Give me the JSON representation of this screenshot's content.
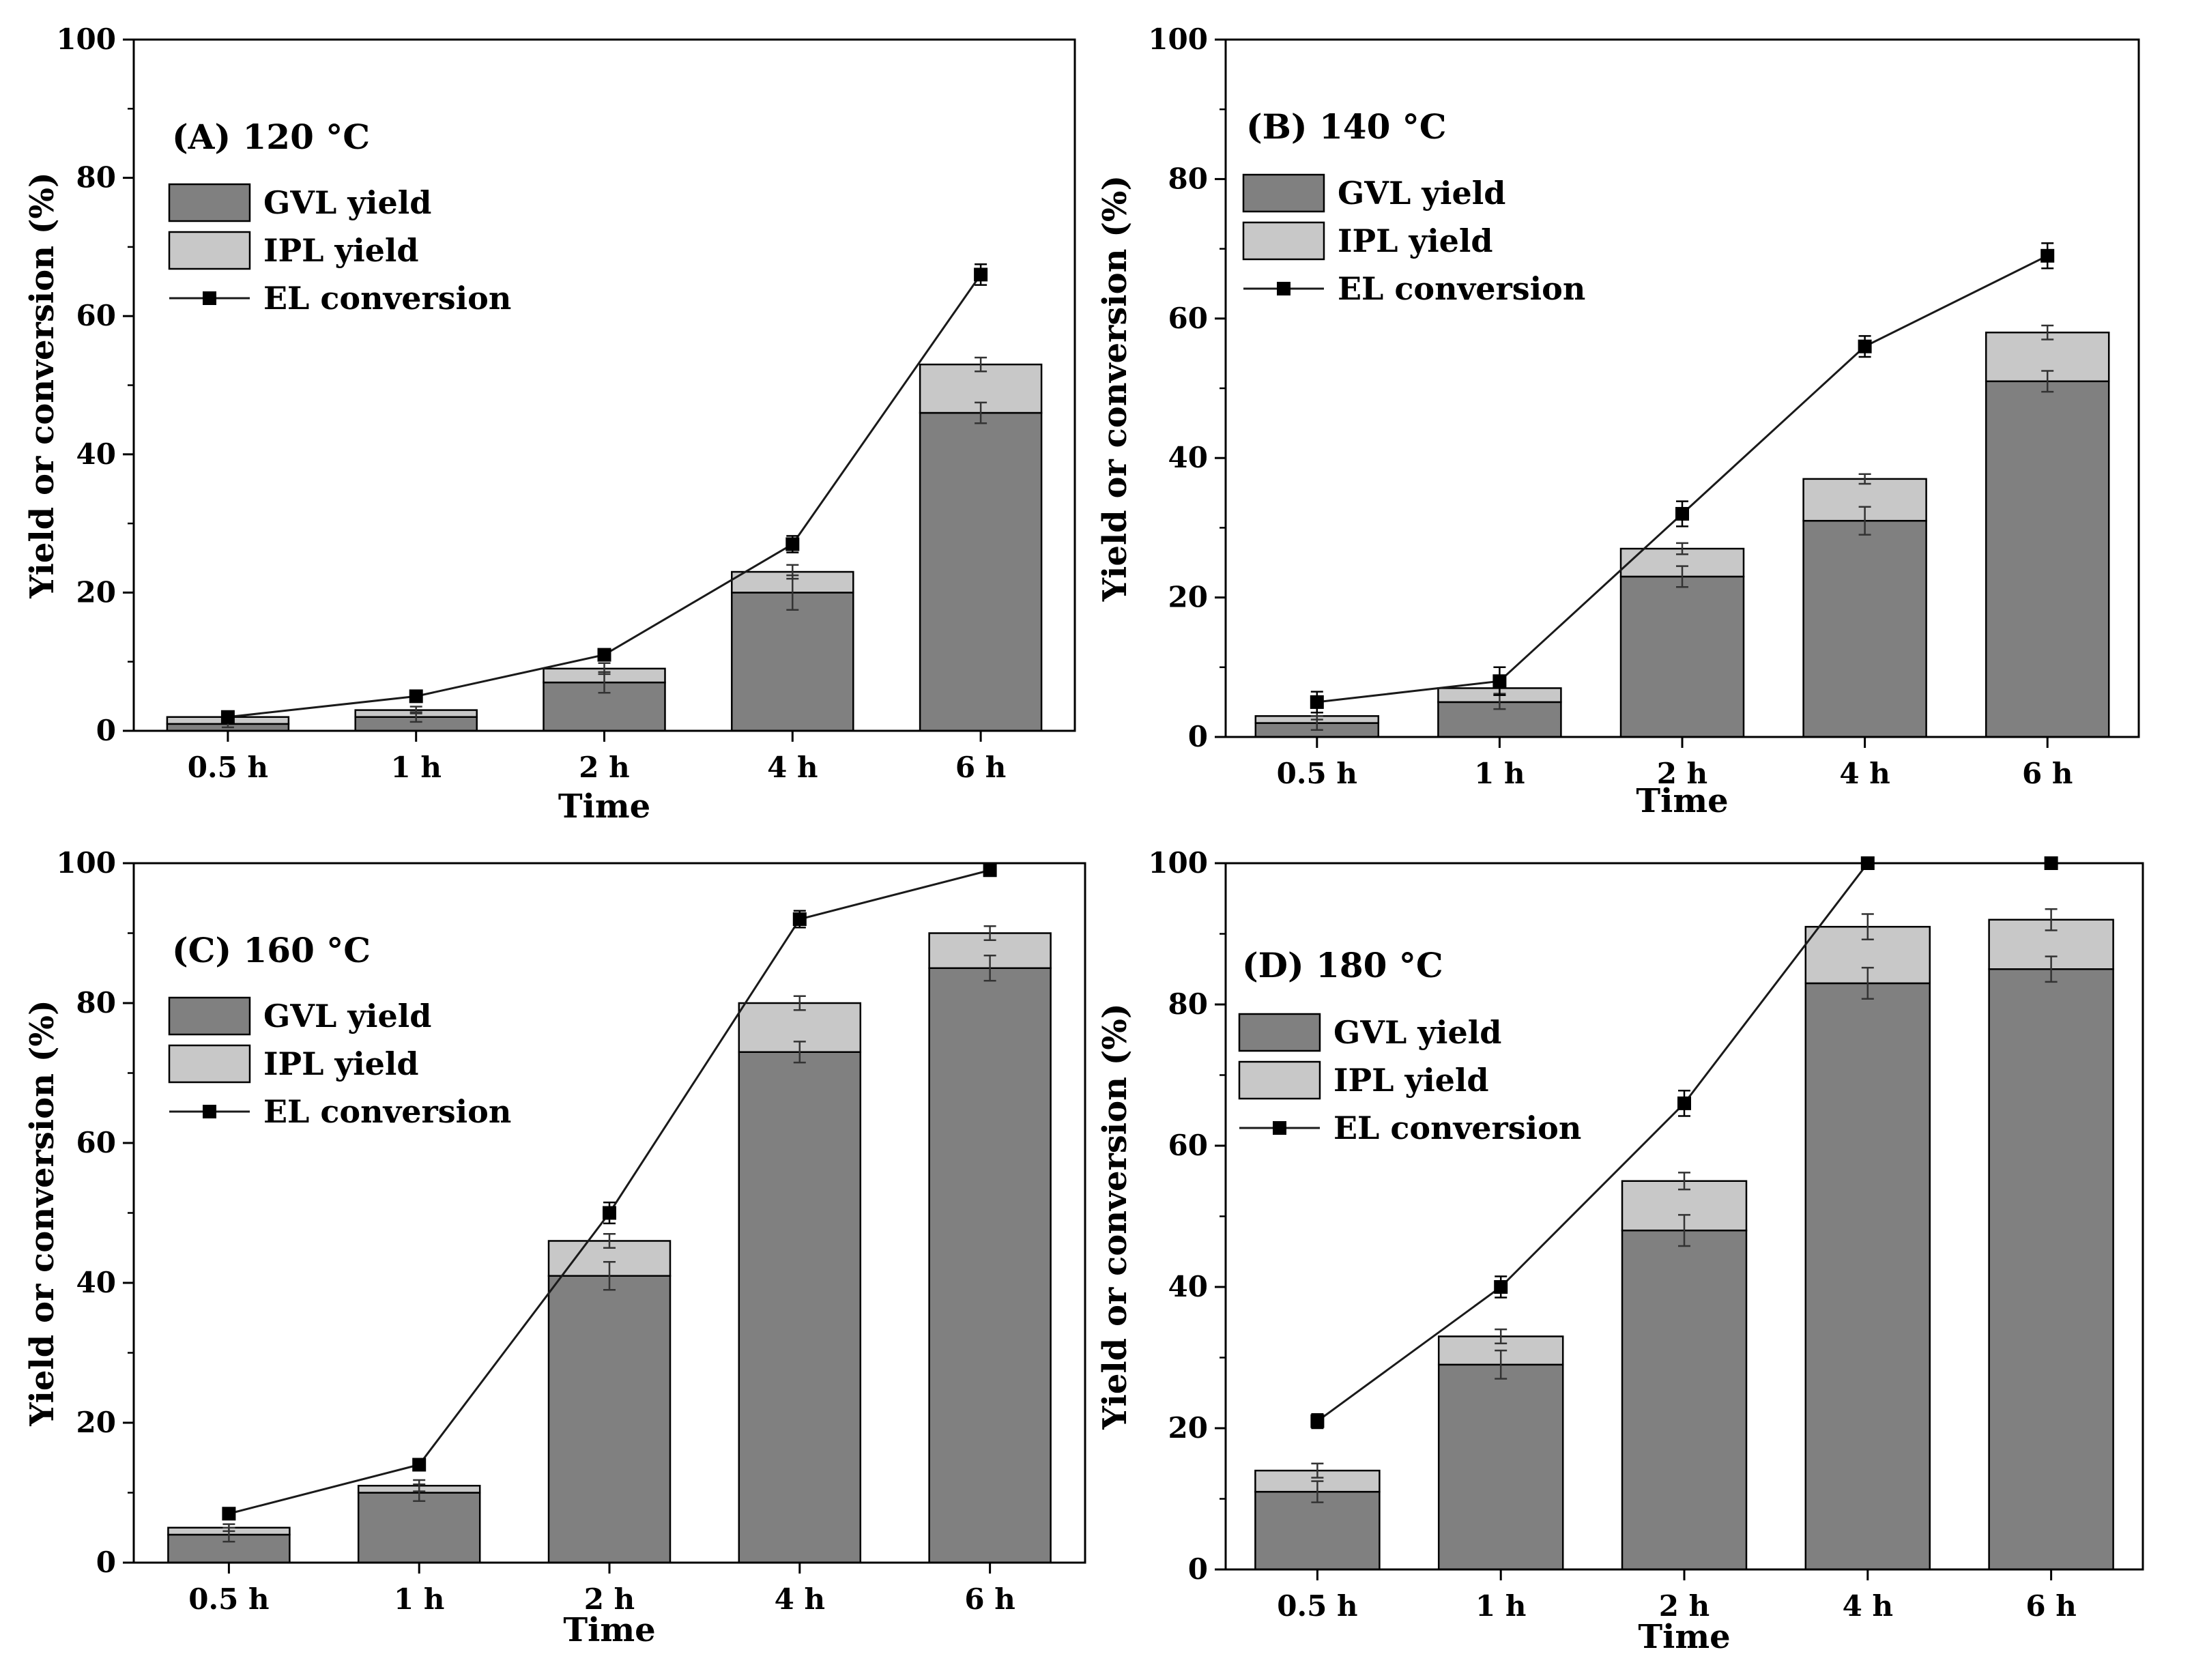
{
  "colors": {
    "gvl": "#808080",
    "ipl": "#c8c8c8",
    "line": "#1a1a1a",
    "marker": "#000000",
    "axis": "#000000"
  },
  "chart_data": [
    {
      "type": "bar",
      "panel": "A",
      "title": "(A)  120 °C",
      "categories": [
        "0.5 h",
        "1 h",
        "2 h",
        "4 h",
        "6 h"
      ],
      "xlabel": "Time",
      "ylabel": "Yield or conversion (%)",
      "ylim": [
        0,
        100
      ],
      "yticks": [
        "0",
        "20",
        "40",
        "60",
        "80",
        "100"
      ],
      "stacked": true,
      "series": [
        {
          "name": "GVL yield",
          "kind": "bar",
          "values": [
            1,
            2,
            7,
            20,
            46
          ],
          "errors": [
            0.5,
            0.7,
            1.5,
            2.5,
            1.5
          ]
        },
        {
          "name": "IPL yield",
          "kind": "bar",
          "values": [
            1,
            1,
            2,
            3,
            7
          ],
          "errors": [
            0.5,
            0.5,
            0.8,
            1.0,
            1.0
          ]
        },
        {
          "name": "EL conversion",
          "kind": "line",
          "values": [
            2,
            5,
            11,
            27,
            66
          ],
          "errors": [
            0.5,
            0.6,
            0.8,
            1.2,
            1.5
          ]
        }
      ]
    },
    {
      "type": "bar",
      "panel": "B",
      "title": "(B)   140 °C",
      "categories": [
        "0.5 h",
        "1 h",
        "2 h",
        "4 h",
        "6 h"
      ],
      "xlabel": "Time",
      "ylabel": "Yield or conversion (%)",
      "ylim": [
        0,
        100
      ],
      "yticks": [
        "0",
        "20",
        "40",
        "60",
        "80",
        "100"
      ],
      "stacked": true,
      "series": [
        {
          "name": "GVL yield",
          "kind": "bar",
          "values": [
            2,
            5,
            23,
            31,
            51
          ],
          "errors": [
            1.0,
            1.0,
            1.5,
            2.0,
            1.5
          ]
        },
        {
          "name": "IPL yield",
          "kind": "bar",
          "values": [
            1,
            2,
            4,
            6,
            7
          ],
          "errors": [
            0.5,
            0.8,
            0.8,
            0.7,
            1.0
          ]
        },
        {
          "name": "EL conversion",
          "kind": "line",
          "values": [
            5,
            8,
            32,
            56,
            69
          ],
          "errors": [
            1.5,
            2.0,
            1.8,
            1.5,
            1.8
          ]
        }
      ]
    },
    {
      "type": "bar",
      "panel": "C",
      "title": "(C)   160 °C",
      "categories": [
        "0.5 h",
        "1 h",
        "2 h",
        "4 h",
        "6 h"
      ],
      "xlabel": "Time",
      "ylabel": "Yield or conversion (%)",
      "ylim": [
        0,
        100
      ],
      "yticks": [
        "0",
        "20",
        "40",
        "60",
        "80",
        "100"
      ],
      "stacked": true,
      "series": [
        {
          "name": "GVL yield",
          "kind": "bar",
          "values": [
            4,
            10,
            41,
            73,
            85
          ],
          "errors": [
            1.0,
            1.2,
            2.0,
            1.5,
            1.8
          ]
        },
        {
          "name": "IPL yield",
          "kind": "bar",
          "values": [
            1,
            1,
            5,
            7,
            5
          ],
          "errors": [
            0.5,
            0.8,
            1.0,
            1.0,
            1.0
          ]
        },
        {
          "name": "EL conversion",
          "kind": "line",
          "values": [
            7,
            14,
            50,
            92,
            99
          ],
          "errors": [
            0.8,
            0.8,
            1.5,
            1.2,
            0.8
          ]
        }
      ]
    },
    {
      "type": "bar",
      "panel": "D",
      "title": "(D)  180 °C",
      "categories": [
        "0.5 h",
        "1 h",
        "2 h",
        "4 h",
        "6 h"
      ],
      "xlabel": "Time",
      "ylabel": "Yield or conversion (%)",
      "ylim": [
        0,
        100
      ],
      "yticks": [
        "0",
        "20",
        "40",
        "60",
        "80",
        "100"
      ],
      "stacked": true,
      "series": [
        {
          "name": "GVL yield",
          "kind": "bar",
          "values": [
            11,
            29,
            48,
            83,
            85
          ],
          "errors": [
            1.5,
            2.0,
            2.2,
            2.2,
            1.8
          ]
        },
        {
          "name": "IPL yield",
          "kind": "bar",
          "values": [
            3,
            4,
            7,
            8,
            7
          ],
          "errors": [
            1.0,
            1.0,
            1.2,
            1.8,
            1.5
          ]
        },
        {
          "name": "EL conversion",
          "kind": "line",
          "values": [
            21,
            40,
            66,
            100,
            100
          ],
          "errors": [
            1.0,
            1.5,
            1.8,
            0.5,
            0.5
          ]
        }
      ]
    }
  ]
}
